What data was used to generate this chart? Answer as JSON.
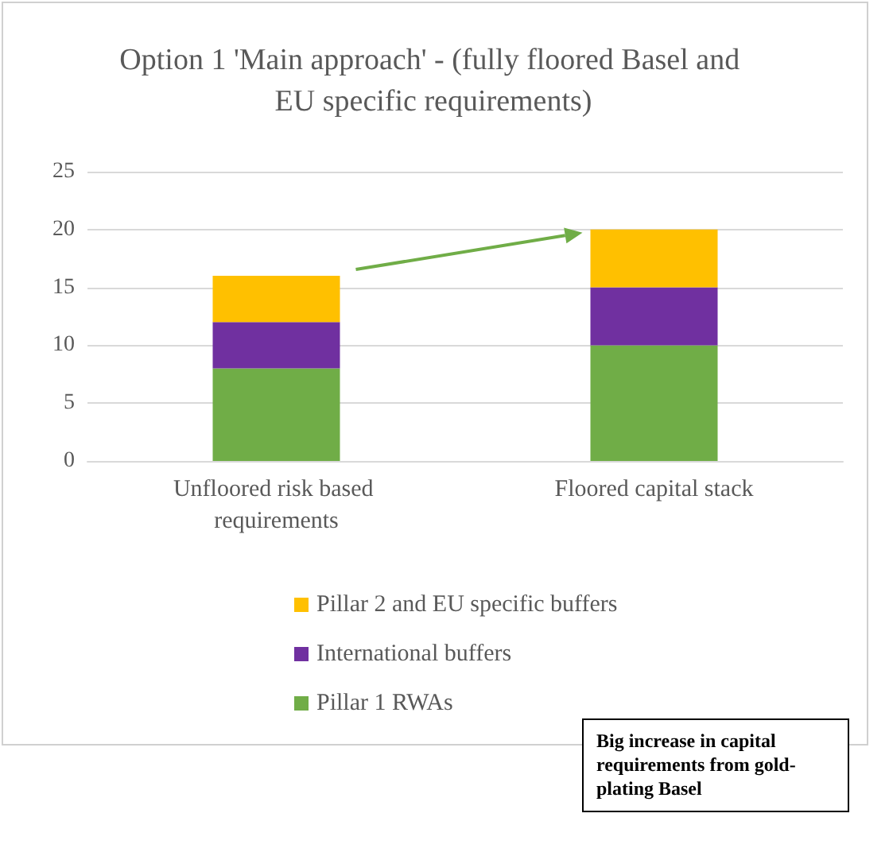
{
  "chart_data": {
    "type": "bar",
    "title": "Option 1 'Main approach' - (fully floored Basel and EU specific requirements)",
    "categories": [
      "Unfloored risk based requirements",
      "Floored capital stack"
    ],
    "stacked": true,
    "series": [
      {
        "name": "Pillar 1 RWAs",
        "color": "#70ad47",
        "values": [
          8,
          10
        ]
      },
      {
        "name": "International buffers",
        "color": "#7030a0",
        "values": [
          4,
          5
        ]
      },
      {
        "name": "Pillar 2 and EU specific buffers",
        "color": "#ffc000",
        "values": [
          4,
          5
        ]
      }
    ],
    "ylim": [
      0,
      25
    ],
    "yticks": [
      0,
      5,
      10,
      15,
      20,
      25
    ],
    "grid": "y",
    "legend": "bottom",
    "annotations": [
      "Big increase in capital requirements from gold-plating Basel"
    ]
  }
}
